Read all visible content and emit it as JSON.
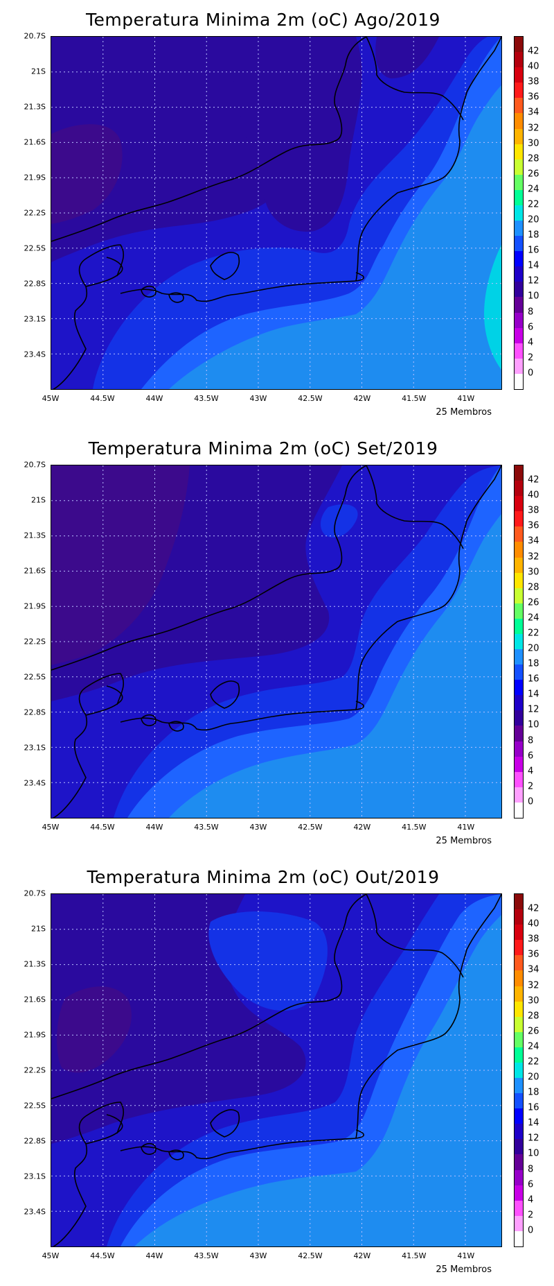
{
  "panels": [
    {
      "title": "Temperatura Minima 2m (oC) Ago/2019",
      "members": "25 Membros"
    },
    {
      "title": "Temperatura Minima 2m (oC) Set/2019",
      "members": "25 Membros"
    },
    {
      "title": "Temperatura Minima 2m (oC) Out/2019",
      "members": "25 Membros"
    }
  ],
  "lat_labels": [
    "20.7S",
    "21S",
    "21.3S",
    "21.6S",
    "21.9S",
    "22.2S",
    "22.5S",
    "22.8S",
    "23.1S",
    "23.4S"
  ],
  "lon_labels": [
    "45W",
    "44.5W",
    "44W",
    "43.5W",
    "43W",
    "42.5W",
    "42W",
    "41.5W",
    "41W"
  ],
  "colorbar": {
    "labels": [
      "42",
      "40",
      "38",
      "36",
      "34",
      "32",
      "30",
      "28",
      "26",
      "24",
      "22",
      "20",
      "18",
      "16",
      "14",
      "12",
      "10",
      "8",
      "6",
      "4",
      "2",
      "0"
    ],
    "colors": [
      "#8b0a0a",
      "#b3000d",
      "#d7000f",
      "#ff1a1a",
      "#ff5a1e",
      "#ff8c00",
      "#ffb400",
      "#ffe600",
      "#c8ff32",
      "#64ff64",
      "#00ff96",
      "#00e6e6",
      "#1e90ff",
      "#1450ff",
      "#0000ff",
      "#1e00c8",
      "#32009b",
      "#640096",
      "#9600c8",
      "#c800e6",
      "#ff50ff",
      "#ffa0ff",
      "#ffffff"
    ]
  },
  "map_colors": {
    "c10_12": "#3c0a8c",
    "c12_14": "#2a0a9e",
    "c14_16": "#1e14c8",
    "c16_18": "#1432e6",
    "c18_20": "#1e64ff",
    "c20_22": "#1e8cf0",
    "c22_24": "#00d2e6"
  }
}
